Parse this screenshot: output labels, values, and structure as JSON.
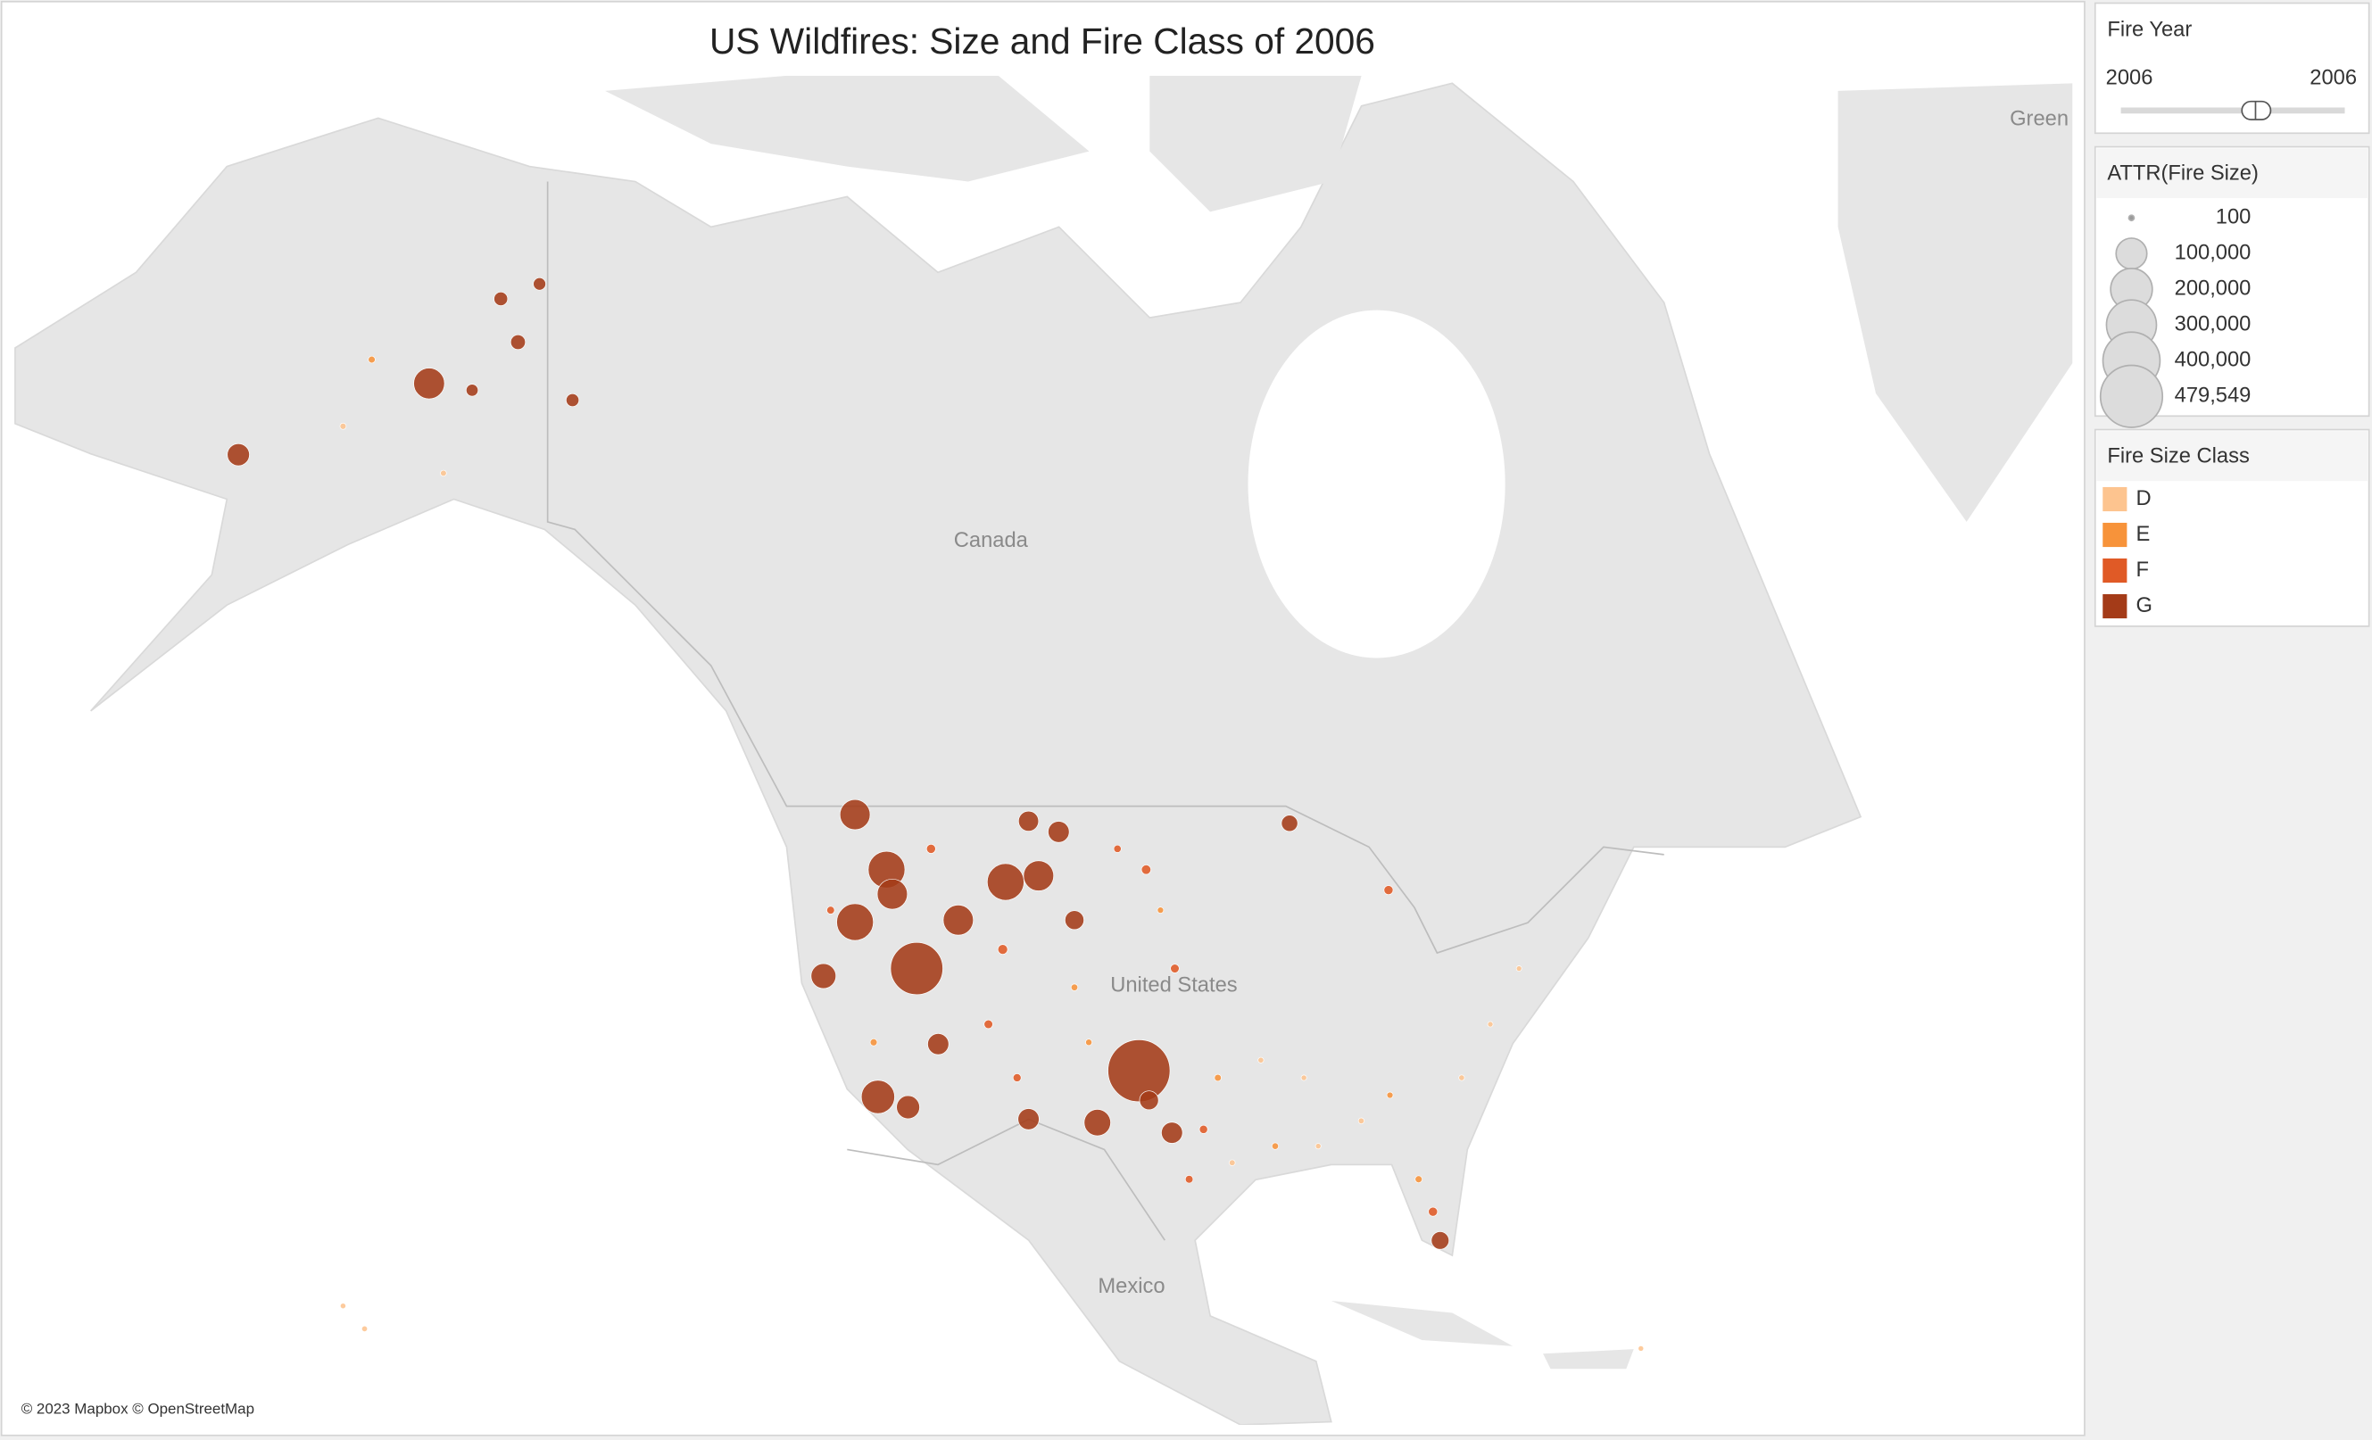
{
  "chart_data": {
    "type": "map",
    "title": "US Wildfires: Size and Fire Class of 2006",
    "attribution": "© 2023 Mapbox © OpenStreetMap",
    "place_labels": [
      "Canada",
      "United States",
      "Mexico",
      "Green"
    ],
    "filter": {
      "title": "Fire Year",
      "min": 2006,
      "max": 2006
    },
    "size_legend": {
      "title": "ATTR(Fire Size)",
      "values": [
        100,
        {
          "value": 100000,
          "label": "100,000"
        },
        {
          "value": 200000,
          "label": "200,000"
        },
        {
          "value": 300000,
          "label": "300,000"
        },
        {
          "value": 400000,
          "label": "400,000"
        },
        {
          "value": 479549,
          "label": "479,549"
        }
      ]
    },
    "color_legend": {
      "title": "Fire Size Class",
      "categories": [
        "D",
        "E",
        "F",
        "G"
      ],
      "colors": [
        "#fdc48f",
        "#f7933a",
        "#e05a26",
        "#a43b18"
      ]
    },
    "points": {
      "longitude": [
        -101.5,
        -117.0,
        -121.3,
        -110.8,
        -119.1,
        -119.7,
        -151.0,
        -121.3,
        -108.5,
        -114.1,
        -118.7,
        -123.5,
        -104.4,
        -164.3,
        -117.6,
        -107.1,
        -109.2,
        -115.5,
        -109.2,
        -99.2,
        -106.0,
        -100.8,
        -80.5,
        -91.0,
        -144.8,
        -146.0,
        -141.0,
        -143.3,
        -148.0,
        -111.0,
        -81.0,
        -99.0,
        -101.0,
        -84.1,
        -116.0,
        -112.0,
        -97.0,
        -110.0,
        -98.0,
        -123.0,
        -103.0,
        -155.0,
        -120.0,
        -82.0,
        -96.0,
        -106.0,
        -105.0,
        -92.0,
        -100.0,
        -84.0,
        -157.0,
        -150.0,
        -95.0,
        -86.0,
        -93.0,
        -79.0,
        -155.5,
        -89.0,
        -90.0,
        -77.0,
        -157.0,
        -75.0,
        -66.5
      ],
      "latitude": [
        35.4,
        41.0,
        48.6,
        45.4,
        46.0,
        33.9,
        64.8,
        43.4,
        45.7,
        43.5,
        44.8,
        40.6,
        32.4,
        62.6,
        33.3,
        47.8,
        48.3,
        36.9,
        32.6,
        31.8,
        43.5,
        33.7,
        25.2,
        48.2,
        66.0,
        67.2,
        64.3,
        67.6,
        64.6,
        42.0,
        27.0,
        41.0,
        46.0,
        45.0,
        47.0,
        38.0,
        32.0,
        35.0,
        29.0,
        44.0,
        47.0,
        65.5,
        37.0,
        29.0,
        35.0,
        40.0,
        37.0,
        31.0,
        44.0,
        34.0,
        63.5,
        62.0,
        30.0,
        32.5,
        36.0,
        35.0,
        19.5,
        31.0,
        35.0,
        38.0,
        21.0,
        41.0,
        18.2
      ],
      "fire_size": [
        479549,
        330000,
        95000,
        150000,
        150000,
        120000,
        100000,
        150000,
        95000,
        95000,
        95000,
        60000,
        70000,
        45000,
        50000,
        40000,
        35000,
        40000,
        40000,
        40000,
        30000,
        30000,
        25000,
        20000,
        15000,
        12000,
        10000,
        9000,
        8000,
        4000,
        3000,
        2500,
        3500,
        3000,
        3000,
        2500,
        2000,
        1800,
        1500,
        1500,
        1200,
        800,
        900,
        900,
        800,
        700,
        500,
        600,
        400,
        400,
        400,
        300,
        300,
        250,
        200,
        200,
        200,
        150,
        150,
        120,
        150,
        110,
        120
      ],
      "fire_size_class": [
        "G",
        "G",
        "G",
        "G",
        "G",
        "G",
        "G",
        "G",
        "G",
        "G",
        "G",
        "G",
        "G",
        "G",
        "G",
        "G",
        "G",
        "G",
        "G",
        "G",
        "G",
        "G",
        "G",
        "G",
        "G",
        "G",
        "G",
        "G",
        "G",
        "F",
        "F",
        "F",
        "F",
        "F",
        "F",
        "F",
        "F",
        "F",
        "F",
        "F",
        "F",
        "E",
        "E",
        "E",
        "E",
        "E",
        "E",
        "E",
        "E",
        "E",
        "D",
        "D",
        "D",
        "D",
        "D",
        "D",
        "D",
        "D",
        "D",
        "D",
        "D",
        "D",
        "D"
      ]
    }
  }
}
